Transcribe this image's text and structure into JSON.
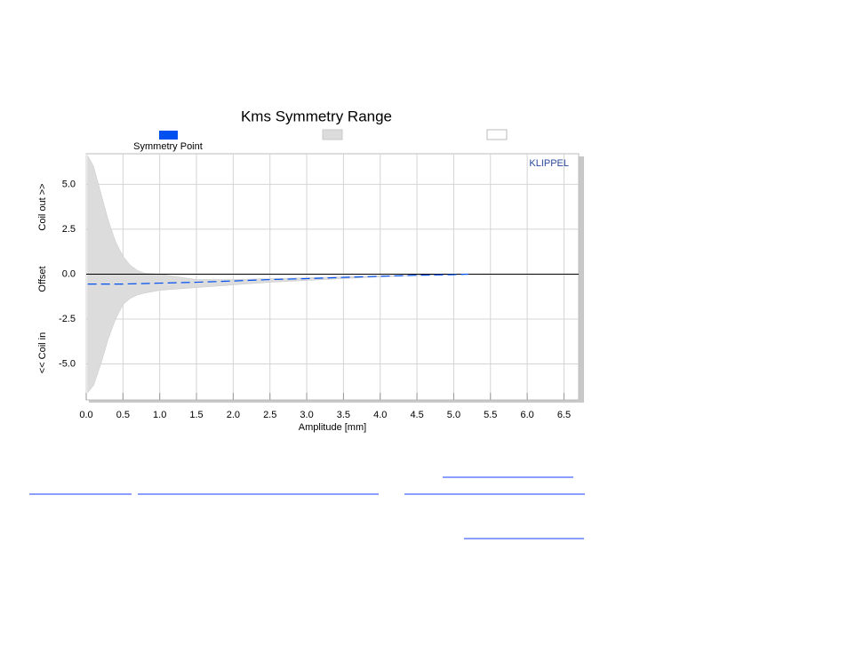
{
  "chart_data": {
    "type": "line",
    "title": "Kms Symmetry Range",
    "xlabel": "Amplitude [mm]",
    "ylabel": [
      "<< Coil in",
      "Offset",
      "Coil out >>"
    ],
    "watermark": "KLIPPEL",
    "xlim": [
      0,
      6.7
    ],
    "ylim": [
      -7,
      6.7
    ],
    "xticks": [
      {
        "value": 0,
        "label": "0.0"
      },
      0.5,
      {
        "value": 1,
        "label": "1.0"
      },
      1.5,
      {
        "value": 2,
        "label": "2.0"
      },
      2.5,
      {
        "value": 3,
        "label": "3.0"
      },
      3.5,
      {
        "value": 4,
        "label": "4.0"
      },
      4.5,
      {
        "value": 5,
        "label": "5.0"
      },
      5.5,
      {
        "value": 6,
        "label": "6.0"
      },
      6.5
    ],
    "yticks": [
      {
        "value": -5,
        "label": "-5.0"
      },
      -2.5,
      {
        "value": 0,
        "label": "0.0"
      },
      2.5,
      {
        "value": 5,
        "label": "5.0"
      }
    ],
    "grid": true,
    "series": [
      {
        "name": "Symmetry Point",
        "color": "#0050f0",
        "x": [
          0.02,
          0.5,
          1.0,
          1.5,
          2.0,
          2.5,
          3.0,
          3.5,
          4.0,
          4.5,
          5.0,
          5.2
        ],
        "values": [
          -0.55,
          -0.55,
          -0.5,
          -0.45,
          -0.38,
          -0.3,
          -0.25,
          -0.18,
          -0.12,
          -0.06,
          -0.03,
          0
        ]
      }
    ],
    "band": {
      "color": "#dcdcdc",
      "x": [
        0.02,
        0.1,
        0.2,
        0.3,
        0.4,
        0.5,
        0.6,
        0.7,
        0.8,
        1.0,
        1.5,
        2.0,
        2.5,
        3.0,
        3.5,
        4.0,
        4.5,
        5.0,
        5.2
      ],
      "upper": [
        6.6,
        6.0,
        4.5,
        3.0,
        1.8,
        1.0,
        0.5,
        0.2,
        0.05,
        0,
        -0.3,
        -0.3,
        -0.25,
        -0.2,
        -0.15,
        -0.1,
        -0.05,
        -0.02,
        0
      ],
      "lower": [
        -6.6,
        -6.2,
        -5.0,
        -3.6,
        -2.5,
        -1.7,
        -1.35,
        -1.15,
        -1.05,
        -0.9,
        -0.75,
        -0.6,
        -0.45,
        -0.35,
        -0.25,
        -0.15,
        -0.08,
        -0.03,
        0
      ]
    }
  }
}
